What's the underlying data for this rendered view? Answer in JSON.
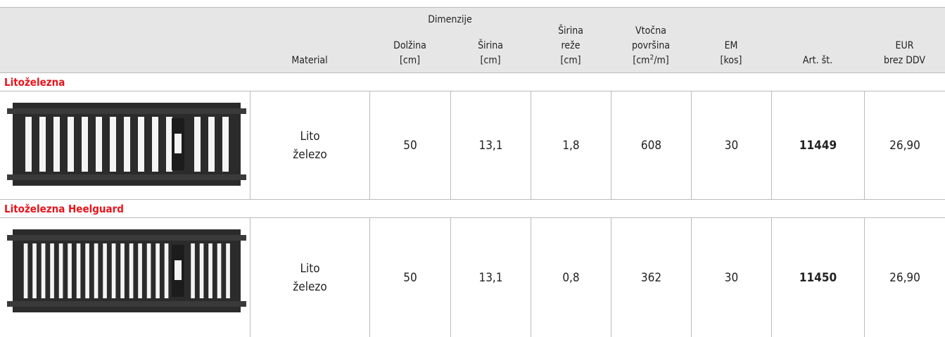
{
  "header": {
    "group": "Dimenzije",
    "columns": [
      [
        "Material"
      ],
      [
        "Dolžina",
        "[cm]"
      ],
      [
        "Širina",
        "[cm]"
      ],
      [
        "Širina",
        "reže",
        "[cm]"
      ],
      [
        "Vtočna",
        "površina",
        {
          "text": "[cm",
          "sup": "2",
          "tail": "/m]"
        }
      ],
      [
        "EM",
        "[kos]"
      ],
      [
        "Art. št."
      ],
      [
        "EUR",
        "brez DDV"
      ]
    ]
  },
  "sections": [
    {
      "title": "Litoželezna",
      "row": {
        "material": [
          "Lito",
          "železo"
        ],
        "cells": [
          "50",
          "13,1",
          "1,8",
          "608",
          "30",
          "11449",
          "26,90"
        ]
      }
    },
    {
      "title": "Litoželezna Heelguard",
      "row": {
        "material": [
          "Lito",
          "železo"
        ],
        "cells": [
          "50",
          "13,1",
          "0,8",
          "362",
          "30",
          "11450",
          "26,90"
        ]
      }
    }
  ]
}
